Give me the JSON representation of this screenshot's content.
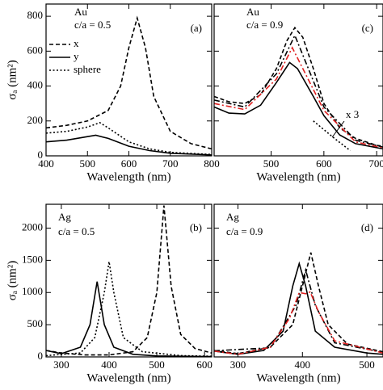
{
  "chart_data": [
    {
      "type": "line",
      "xlabel": "Wavelength  (nm)",
      "ylabel": "σₐ  (nm²)",
      "annotations": [
        "Au",
        "c/a = 0.5",
        "(a)"
      ],
      "xlim": [
        400,
        800
      ],
      "xticks": [
        400,
        500,
        600,
        700,
        800
      ],
      "ylim": [
        0,
        870
      ],
      "yticks": [
        0,
        200,
        400,
        600,
        800
      ],
      "ytick_labels": true,
      "legend": "upper left",
      "series": [
        {
          "name": "x",
          "color": "#000000",
          "dash": "dashed",
          "x": [
            400,
            450,
            500,
            550,
            580,
            600,
            620,
            640,
            660,
            700,
            750,
            800
          ],
          "values": [
            160,
            175,
            200,
            260,
            400,
            620,
            790,
            620,
            340,
            140,
            70,
            40
          ]
        },
        {
          "name": "y",
          "color": "#000000",
          "dash": "solid",
          "x": [
            400,
            450,
            500,
            520,
            550,
            600,
            650,
            700,
            800
          ],
          "values": [
            80,
            90,
            110,
            118,
            100,
            55,
            30,
            15,
            5
          ]
        },
        {
          "name": "sphere",
          "color": "#000000",
          "dash": "dotted",
          "x": [
            400,
            450,
            500,
            530,
            550,
            600,
            650,
            700,
            800
          ],
          "values": [
            130,
            140,
            165,
            190,
            160,
            80,
            40,
            20,
            8
          ]
        }
      ]
    },
    {
      "type": "line",
      "xlabel": "Wavelength  (nm)",
      "ylabel": "σₐ  (nm²)",
      "annotations": [
        "Ag",
        "c/a = 0.5",
        "(b)"
      ],
      "xlim": [
        268,
        615
      ],
      "xticks": [
        300,
        400,
        500,
        600
      ],
      "ylim": [
        0,
        2370
      ],
      "yticks": [
        0,
        500,
        1000,
        1500,
        2000
      ],
      "ytick_labels": true,
      "series": [
        {
          "color": "#000000",
          "dash": "dashed",
          "x": [
            268,
            300,
            350,
            400,
            450,
            480,
            500,
            515,
            530,
            550,
            580,
            615
          ],
          "values": [
            100,
            60,
            30,
            30,
            80,
            300,
            1000,
            2350,
            1100,
            350,
            130,
            60
          ]
        },
        {
          "color": "#000000",
          "dash": "solid",
          "x": [
            268,
            300,
            340,
            360,
            375,
            390,
            410,
            450,
            500,
            615
          ],
          "values": [
            100,
            50,
            150,
            500,
            1170,
            500,
            150,
            40,
            15,
            5
          ]
        },
        {
          "color": "#000000",
          "dash": "dotted",
          "x": [
            268,
            340,
            370,
            390,
            400,
            410,
            430,
            470,
            550,
            615
          ],
          "values": [
            20,
            60,
            300,
            1000,
            1480,
            1000,
            300,
            80,
            20,
            10
          ]
        }
      ]
    },
    {
      "type": "line",
      "xlabel": "Wavelength  (nm)",
      "annotations": [
        "Au",
        "c/a = 0.9",
        "(c)",
        "x 3"
      ],
      "xlim": [
        392,
        712
      ],
      "xticks": [
        500,
        600,
        700
      ],
      "ylim": [
        0,
        870
      ],
      "yticks": [
        0,
        200,
        400,
        600,
        800
      ],
      "ytick_labels": false,
      "series": [
        {
          "color": "#000000",
          "dash": "dashed",
          "x": [
            392,
            420,
            450,
            480,
            510,
            530,
            545,
            560,
            580,
            600,
            630,
            660,
            700,
            712
          ],
          "values": [
            340,
            310,
            300,
            350,
            500,
            660,
            735,
            680,
            500,
            300,
            160,
            100,
            60,
            55
          ]
        },
        {
          "color": "#000000",
          "dash": "dashdot",
          "x": [
            392,
            450,
            510,
            545,
            600,
            660,
            712
          ],
          "values": [
            320,
            280,
            470,
            690,
            280,
            90,
            50
          ]
        },
        {
          "color": "#e02020",
          "dash": "dashdot",
          "x": [
            392,
            450,
            510,
            540,
            600,
            660,
            712
          ],
          "values": [
            300,
            265,
            440,
            620,
            260,
            80,
            45
          ]
        },
        {
          "color": "#000000",
          "dash": "solid",
          "x": [
            392,
            420,
            450,
            480,
            510,
            535,
            550,
            580,
            600,
            630,
            660,
            712
          ],
          "values": [
            280,
            245,
            240,
            290,
            420,
            535,
            500,
            340,
            230,
            120,
            70,
            40
          ]
        },
        {
          "color": "#000000",
          "dash": "dotted",
          "x": [
            580,
            620,
            650
          ],
          "values": [
            200,
            100,
            30
          ]
        }
      ]
    },
    {
      "type": "line",
      "xlabel": "Wavelength  (nm)",
      "annotations": [
        "Ag",
        "c/a = 0.9",
        "(d)"
      ],
      "xlim": [
        263,
        525
      ],
      "xticks": [
        300,
        400,
        500
      ],
      "ylim": [
        0,
        2370
      ],
      "yticks": [
        0,
        500,
        1000,
        1500,
        2000
      ],
      "ytick_labels": false,
      "series": [
        {
          "color": "#000000",
          "dash": "solid",
          "x": [
            263,
            300,
            340,
            370,
            385,
            395,
            405,
            420,
            450,
            500,
            525
          ],
          "values": [
            90,
            40,
            100,
            400,
            1100,
            1450,
            1100,
            400,
            150,
            60,
            40
          ]
        },
        {
          "color": "#000000",
          "dash": "dashed",
          "x": [
            263,
            300,
            350,
            385,
            400,
            413,
            425,
            440,
            470,
            525
          ],
          "values": [
            100,
            50,
            150,
            500,
            1100,
            1620,
            1100,
            500,
            200,
            80
          ]
        },
        {
          "color": "#000000",
          "dash": "dashdot",
          "x": [
            263,
            350,
            390,
            405,
            420,
            450,
            525
          ],
          "values": [
            95,
            140,
            800,
            1350,
            800,
            220,
            70
          ]
        },
        {
          "color": "#e02020",
          "dash": "dashdot",
          "x": [
            263,
            300,
            350,
            380,
            395,
            405,
            412,
            425,
            450,
            525
          ],
          "values": [
            90,
            40,
            150,
            600,
            1000,
            980,
            1010,
            700,
            250,
            60
          ]
        }
      ]
    }
  ]
}
